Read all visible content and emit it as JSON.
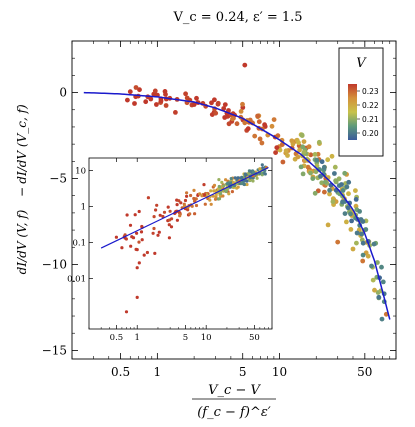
{
  "chart_data": {
    "type": "scatter",
    "title": "V_c = 0.24,  ε′ = 1.5",
    "xlabel": {
      "numerator": "V_c − V",
      "denominator": "(f_c − f)^ε′"
    },
    "ylabel": {
      "first": "dI/dV (V, f)",
      "minus": "−",
      "second": "dI/dV (V_c, f)"
    },
    "x_scale": "log",
    "xlim": [
      0.2,
      90
    ],
    "ylim": [
      -15.5,
      3
    ],
    "x_ticks": [
      0.5,
      1,
      5,
      10,
      50
    ],
    "x_tick_labels": [
      "0.5",
      "1",
      "5",
      "10",
      "50"
    ],
    "y_ticks": [
      0,
      -5,
      -10,
      -15
    ],
    "y_tick_labels": [
      "0",
      "−5",
      "−10",
      "−15"
    ],
    "colorbar": {
      "title": "V",
      "tick_values": [
        0.23,
        0.22,
        0.21,
        0.2
      ],
      "tick_labels": [
        "0.23",
        "0.22",
        "0.21",
        "0.20"
      ],
      "range": [
        0.195,
        0.235
      ],
      "colors": [
        "#c0392b",
        "#d4903a",
        "#c8c24a",
        "#5e9a7a",
        "#3a5a9a"
      ]
    },
    "fit_curve": {
      "color": "#1a1acc",
      "x": [
        0.25,
        0.5,
        1,
        2,
        3,
        5,
        7,
        10,
        15,
        20,
        30,
        40,
        50,
        60,
        70,
        80
      ],
      "y": [
        0.0,
        -0.08,
        -0.25,
        -0.55,
        -0.9,
        -1.5,
        -2.1,
        -2.75,
        -3.6,
        -4.4,
        -5.6,
        -6.8,
        -8.2,
        -9.8,
        -11.6,
        -13.2
      ]
    },
    "clusters": [
      {
        "v": 0.235,
        "count": 60,
        "xmin": 0.5,
        "xmax": 10,
        "yspread": 0.5
      },
      {
        "v": 0.228,
        "count": 55,
        "xmin": 4,
        "xmax": 25,
        "yspread": 0.6
      },
      {
        "v": 0.22,
        "count": 55,
        "xmin": 10,
        "xmax": 55,
        "yspread": 0.7
      },
      {
        "v": 0.21,
        "count": 55,
        "xmin": 15,
        "xmax": 70,
        "yspread": 0.7
      },
      {
        "v": 0.2,
        "count": 45,
        "xmin": 20,
        "xmax": 75,
        "yspread": 0.6
      }
    ],
    "outliers": [
      {
        "x": 5.2,
        "y": 1.6,
        "v": 0.235
      },
      {
        "x": 3.6,
        "y": -0.7,
        "v": 0.235
      },
      {
        "x": 0.6,
        "y": 0.05,
        "v": 0.235
      },
      {
        "x": 1.0,
        "y": -0.15,
        "v": 0.235
      },
      {
        "x": 75,
        "y": -12.9,
        "v": 0.228
      },
      {
        "x": 60,
        "y": -11.5,
        "v": 0.22
      },
      {
        "x": 48,
        "y": -9.8,
        "v": 0.228
      },
      {
        "x": 40,
        "y": -9.1,
        "v": 0.22
      },
      {
        "x": 30,
        "y": -8.7,
        "v": 0.228
      },
      {
        "x": 25,
        "y": -7.7,
        "v": 0.22
      },
      {
        "x": 9.5,
        "y": -3.2,
        "v": 0.235
      }
    ],
    "inset": {
      "x_scale": "log",
      "y_scale": "log",
      "xlim": [
        0.2,
        90
      ],
      "ylim": [
        0.0004,
        22
      ],
      "x_ticks": [
        0.5,
        1,
        5,
        10,
        50
      ],
      "x_tick_labels": [
        "0.5",
        "1",
        "5",
        "10",
        "50"
      ],
      "y_ticks": [
        10,
        1,
        0.1,
        0.01
      ],
      "y_tick_labels": [
        "10",
        "1",
        "0.1",
        "0.01"
      ],
      "fit_curve": {
        "x": [
          0.3,
          80
        ],
        "y": [
          0.07,
          12
        ]
      },
      "outliers": [
        {
          "x": 1.0,
          "y": 0.02,
          "v": 0.235
        },
        {
          "x": 1.0,
          "y": 0.003,
          "v": 0.235
        },
        {
          "x": 0.7,
          "y": 0.0012,
          "v": 0.235
        },
        {
          "x": 0.5,
          "y": 0.14,
          "v": 0.235
        },
        {
          "x": 1.8,
          "y": 0.05,
          "v": 0.235
        },
        {
          "x": 0.8,
          "y": 0.3,
          "v": 0.235
        }
      ]
    }
  }
}
